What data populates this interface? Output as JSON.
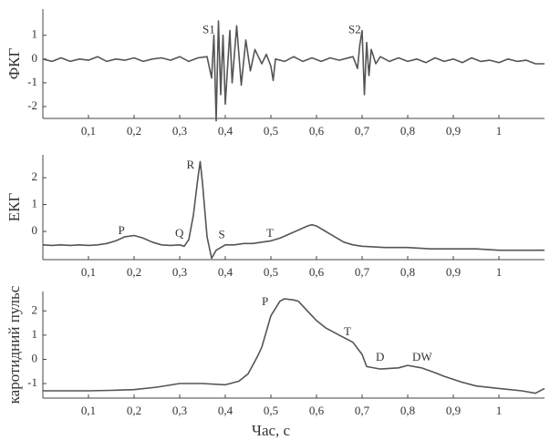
{
  "chart_data": [
    {
      "type": "line",
      "ylabel": "ФКГ",
      "color": "#555",
      "x": [
        0,
        0.02,
        0.04,
        0.06,
        0.08,
        0.1,
        0.12,
        0.14,
        0.16,
        0.18,
        0.2,
        0.22,
        0.24,
        0.26,
        0.28,
        0.3,
        0.32,
        0.34,
        0.36,
        0.37,
        0.375,
        0.38,
        0.385,
        0.39,
        0.395,
        0.4,
        0.41,
        0.415,
        0.425,
        0.435,
        0.445,
        0.455,
        0.465,
        0.48,
        0.49,
        0.5,
        0.505,
        0.51,
        0.53,
        0.55,
        0.57,
        0.59,
        0.61,
        0.63,
        0.65,
        0.68,
        0.69,
        0.695,
        0.7,
        0.705,
        0.71,
        0.715,
        0.72,
        0.73,
        0.74,
        0.76,
        0.78,
        0.8,
        0.82,
        0.84,
        0.86,
        0.88,
        0.9,
        0.92,
        0.94,
        0.96,
        0.98,
        1,
        1.02,
        1.04,
        1.06,
        1.08,
        1.1
      ],
      "values": [
        0,
        -0.1,
        0.05,
        -0.1,
        0,
        -0.05,
        0.1,
        -0.1,
        0,
        -0.05,
        0.05,
        -0.1,
        0,
        0.05,
        -0.05,
        0.1,
        -0.1,
        0.05,
        0.1,
        -0.8,
        1.0,
        -2.6,
        1.6,
        -1.5,
        1.0,
        -1.9,
        1.2,
        -1.0,
        1.4,
        -1.1,
        0.8,
        -0.5,
        0.4,
        -0.2,
        0.2,
        -0.3,
        -0.9,
        0,
        -0.1,
        0.1,
        -0.1,
        0.05,
        -0.1,
        0.05,
        -0.05,
        0.1,
        -0.4,
        0.6,
        1.2,
        -1.5,
        0.7,
        -0.7,
        0.4,
        -0.2,
        0.1,
        -0.1,
        0.05,
        -0.1,
        0,
        -0.15,
        0.05,
        -0.1,
        0,
        -0.15,
        0.05,
        -0.1,
        -0.05,
        -0.15,
        0,
        -0.1,
        -0.05,
        -0.2,
        -0.2
      ],
      "xlim": [
        0,
        1.1
      ],
      "ylim": [
        -2.5,
        2.1
      ],
      "xticks": [
        {
          "value": 0.1,
          "label": "0,1"
        },
        {
          "value": 0.2,
          "label": "0,2"
        },
        {
          "value": 0.3,
          "label": "0,3"
        },
        {
          "value": 0.4,
          "label": "0,4"
        },
        {
          "value": 0.5,
          "label": "0,5"
        },
        {
          "value": 0.6,
          "label": "0,6"
        },
        {
          "value": 0.7,
          "label": "0,7"
        },
        {
          "value": 0.8,
          "label": "0,8"
        },
        {
          "value": 0.9,
          "label": "0,9"
        },
        1
      ],
      "yticks": [
        1,
        0,
        -1,
        -2
      ],
      "annotations": [
        {
          "text": "S1",
          "x": 0.35,
          "y": 1.2
        },
        {
          "text": "S2",
          "x": 0.67,
          "y": 1.2
        }
      ]
    },
    {
      "type": "line",
      "ylabel": "ЕКГ",
      "color": "#555",
      "x": [
        0,
        0.02,
        0.04,
        0.06,
        0.08,
        0.1,
        0.12,
        0.14,
        0.16,
        0.18,
        0.2,
        0.22,
        0.24,
        0.26,
        0.28,
        0.3,
        0.31,
        0.32,
        0.33,
        0.34,
        0.345,
        0.35,
        0.36,
        0.37,
        0.38,
        0.4,
        0.42,
        0.44,
        0.46,
        0.48,
        0.5,
        0.52,
        0.54,
        0.56,
        0.58,
        0.59,
        0.6,
        0.62,
        0.64,
        0.66,
        0.68,
        0.7,
        0.75,
        0.8,
        0.85,
        0.9,
        0.95,
        1,
        1.05,
        1.1
      ],
      "values": [
        -0.5,
        -0.52,
        -0.5,
        -0.52,
        -0.5,
        -0.52,
        -0.5,
        -0.45,
        -0.35,
        -0.2,
        -0.15,
        -0.25,
        -0.4,
        -0.5,
        -0.52,
        -0.5,
        -0.55,
        -0.3,
        0.6,
        2.0,
        2.6,
        1.8,
        -0.2,
        -1.0,
        -0.7,
        -0.5,
        -0.5,
        -0.45,
        -0.45,
        -0.4,
        -0.35,
        -0.25,
        -0.1,
        0.05,
        0.2,
        0.25,
        0.2,
        0,
        -0.2,
        -0.4,
        -0.5,
        -0.55,
        -0.6,
        -0.6,
        -0.65,
        -0.65,
        -0.65,
        -0.7,
        -0.7,
        -0.7
      ],
      "xlim": [
        0,
        1.1
      ],
      "ylim": [
        -1.05,
        2.85
      ],
      "xticks": [
        {
          "value": 0.1,
          "label": "0,1"
        },
        {
          "value": 0.2,
          "label": "0,2"
        },
        {
          "value": 0.3,
          "label": "0,3"
        },
        {
          "value": 0.4,
          "label": "0,4"
        },
        {
          "value": 0.5,
          "label": "0,5"
        },
        {
          "value": 0.6,
          "label": "0,6"
        },
        {
          "value": 0.7,
          "label": "0,7"
        },
        {
          "value": 0.8,
          "label": "0,8"
        },
        {
          "value": 0.9,
          "label": "0,9"
        },
        1
      ],
      "yticks": [
        2,
        1,
        0
      ],
      "annotations": [
        {
          "text": "R",
          "x": 0.315,
          "y": 2.45
        },
        {
          "text": "P",
          "x": 0.165,
          "y": 0
        },
        {
          "text": "Q",
          "x": 0.29,
          "y": -0.1
        },
        {
          "text": "S",
          "x": 0.385,
          "y": -0.15
        },
        {
          "text": "T",
          "x": 0.49,
          "y": -0.1
        }
      ]
    },
    {
      "type": "line",
      "ylabel": "каротидний пульс",
      "xlabel": "Час, с",
      "color": "#555",
      "x": [
        0,
        0.05,
        0.1,
        0.15,
        0.2,
        0.25,
        0.3,
        0.35,
        0.4,
        0.43,
        0.45,
        0.47,
        0.48,
        0.5,
        0.52,
        0.53,
        0.55,
        0.56,
        0.58,
        0.6,
        0.62,
        0.65,
        0.68,
        0.7,
        0.71,
        0.74,
        0.78,
        0.8,
        0.83,
        0.86,
        0.88,
        0.92,
        0.95,
        1,
        1.05,
        1.08,
        1.1
      ],
      "values": [
        -1.3,
        -1.3,
        -1.3,
        -1.28,
        -1.25,
        -1.15,
        -1.0,
        -1.0,
        -1.05,
        -0.9,
        -0.6,
        0.1,
        0.5,
        1.8,
        2.4,
        2.5,
        2.45,
        2.4,
        2.0,
        1.6,
        1.3,
        1.0,
        0.7,
        0.2,
        -0.3,
        -0.4,
        -0.35,
        -0.25,
        -0.35,
        -0.55,
        -0.7,
        -0.95,
        -1.1,
        -1.2,
        -1.3,
        -1.4,
        -1.2
      ],
      "xlim": [
        0,
        1.1
      ],
      "ylim": [
        -1.6,
        2.8
      ],
      "xticks": [
        {
          "value": 0.1,
          "label": "0,1"
        },
        {
          "value": 0.2,
          "label": "0,2"
        },
        {
          "value": 0.3,
          "label": "0,3"
        },
        {
          "value": 0.4,
          "label": "0,4"
        },
        {
          "value": 0.5,
          "label": "0,5"
        },
        {
          "value": 0.6,
          "label": "0,6"
        },
        {
          "value": 0.7,
          "label": "0,7"
        },
        {
          "value": 0.8,
          "label": "0,8"
        },
        {
          "value": 0.9,
          "label": "0,9"
        },
        1
      ],
      "yticks": [
        2,
        1,
        0,
        -1
      ],
      "annotations": [
        {
          "text": "P",
          "x": 0.48,
          "y": 2.35
        },
        {
          "text": "T",
          "x": 0.66,
          "y": 1.1
        },
        {
          "text": "D",
          "x": 0.73,
          "y": 0.05
        },
        {
          "text": "DW",
          "x": 0.81,
          "y": 0.05
        }
      ]
    }
  ]
}
